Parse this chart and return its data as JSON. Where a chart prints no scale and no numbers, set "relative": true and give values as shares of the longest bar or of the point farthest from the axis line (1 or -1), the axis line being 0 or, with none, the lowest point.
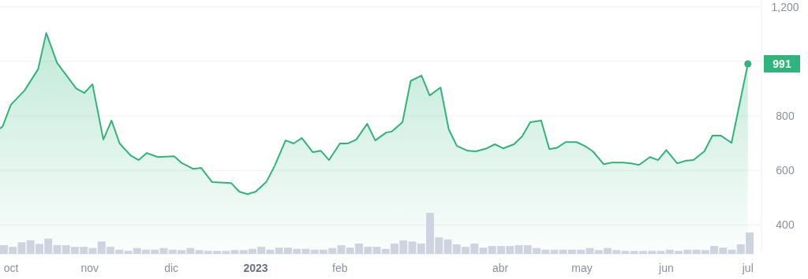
{
  "chart_data": [
    {
      "type": "area",
      "color": "#2fb47c",
      "x": [
        "2022-09-29",
        "2022-09-30",
        "2022-10-03",
        "2022-10-08",
        "2022-10-13",
        "2022-10-16",
        "2022-10-20",
        "2022-10-27",
        "2022-10-30",
        "2022-11-02",
        "2022-11-06",
        "2022-11-09",
        "2022-11-12",
        "2022-11-16",
        "2022-11-19",
        "2022-11-22",
        "2022-11-26",
        "2022-12-02",
        "2022-12-05",
        "2022-12-09",
        "2022-12-12",
        "2022-12-16",
        "2022-12-23",
        "2022-12-26",
        "2022-12-29",
        "2023-01-01",
        "2023-01-05",
        "2023-01-08",
        "2023-01-12",
        "2023-01-15",
        "2023-01-18",
        "2023-01-22",
        "2023-01-25",
        "2023-01-28",
        "2023-02-01",
        "2023-02-04",
        "2023-02-07",
        "2023-02-11",
        "2023-02-14",
        "2023-02-18",
        "2023-02-20",
        "2023-02-24",
        "2023-02-27",
        "2023-03-03",
        "2023-03-06",
        "2023-03-10",
        "2023-03-13",
        "2023-03-16",
        "2023-03-20",
        "2023-03-23",
        "2023-03-27",
        "2023-03-30",
        "2023-04-02",
        "2023-04-06",
        "2023-04-09",
        "2023-04-12",
        "2023-04-16",
        "2023-04-19",
        "2023-04-22",
        "2023-04-25",
        "2023-04-29",
        "2023-05-02",
        "2023-05-05",
        "2023-05-09",
        "2023-05-12",
        "2023-05-16",
        "2023-05-19",
        "2023-05-22",
        "2023-05-26",
        "2023-05-29",
        "2023-06-01",
        "2023-06-05",
        "2023-06-08",
        "2023-06-11",
        "2023-06-15",
        "2023-06-18",
        "2023-06-21",
        "2023-06-25",
        "2023-07-01"
      ],
      "values": [
        754,
        762,
        841,
        893,
        971,
        1104,
        994,
        901,
        884,
        916,
        713,
        783,
        699,
        655,
        638,
        664,
        649,
        652,
        626,
        606,
        609,
        557,
        554,
        522,
        513,
        522,
        559,
        617,
        710,
        699,
        719,
        667,
        672,
        638,
        699,
        699,
        713,
        771,
        710,
        739,
        742,
        777,
        928,
        948,
        875,
        904,
        751,
        690,
        672,
        670,
        681,
        696,
        681,
        696,
        725,
        777,
        783,
        678,
        684,
        704,
        704,
        690,
        670,
        623,
        629,
        629,
        626,
        620,
        649,
        638,
        675,
        626,
        635,
        638,
        670,
        728,
        728,
        701,
        991
      ],
      "xlim": [
        "2022-09-29",
        "2023-07-06"
      ],
      "xticks": [
        {
          "value": "2022-10-01",
          "label": "oct"
        },
        {
          "value": "2022-11-01",
          "label": "nov"
        },
        {
          "value": "2022-12-01",
          "label": "dic"
        },
        {
          "value": "2023-01-01",
          "label": "2023"
        },
        {
          "value": "2023-02-01",
          "label": "feb"
        },
        {
          "value": "2023-04-01",
          "label": "abr"
        },
        {
          "value": "2023-05-01",
          "label": "may"
        },
        {
          "value": "2023-06-01",
          "label": "jun"
        },
        {
          "value": "2023-07-01",
          "label": "jul"
        }
      ],
      "ylim": [
        300,
        1225
      ],
      "yticks": [
        400,
        600,
        800,
        {
          "value": 1000,
          "label": null
        },
        {
          "value": 1200,
          "label": "1,200"
        }
      ],
      "grid": "y",
      "annotations": [
        {
          "text": "991",
          "x": "2023-07-01",
          "y": 991
        }
      ]
    },
    {
      "type": "bar",
      "relative": true,
      "color": "#cdd4e0",
      "categories": [
        null,
        null,
        null,
        null,
        null,
        null,
        null,
        null,
        null,
        null,
        null,
        null,
        null,
        null,
        null,
        null,
        null,
        null,
        null,
        null,
        null,
        null,
        null,
        null,
        null,
        null,
        null,
        null,
        null,
        null,
        null,
        null,
        null,
        null,
        null,
        null,
        null,
        null,
        null,
        null,
        null,
        null,
        null,
        null,
        null,
        null,
        null,
        null,
        null,
        null,
        null,
        null,
        null,
        null,
        null,
        null,
        null,
        null,
        null,
        null,
        null,
        null,
        null,
        null,
        null,
        null,
        null,
        null,
        null,
        null,
        null,
        null,
        null,
        null,
        null,
        null,
        null,
        null,
        null,
        null,
        null,
        null,
        null,
        null,
        null
      ],
      "values": [
        0.21,
        0.17,
        0.28,
        0.33,
        0.24,
        0.37,
        0.21,
        0.21,
        0.17,
        0.17,
        0.14,
        0.3,
        0.17,
        0.1,
        0.07,
        0.14,
        0.1,
        0.1,
        0.14,
        0.1,
        0.09,
        0.14,
        0.09,
        0.07,
        0.07,
        0.07,
        0.09,
        0.09,
        0.12,
        0.17,
        0.1,
        0.15,
        0.15,
        0.12,
        0.12,
        0.1,
        0.1,
        0.14,
        0.21,
        0.15,
        0.25,
        0.17,
        0.17,
        0.12,
        0.25,
        0.33,
        0.3,
        0.25,
        1,
        0.4,
        0.35,
        0.23,
        0.17,
        0.25,
        0.15,
        0.19,
        0.19,
        0.19,
        0.21,
        0.21,
        0.14,
        0.1,
        0.1,
        0.1,
        0.1,
        0.1,
        0.14,
        0.09,
        0.14,
        0.09,
        0.07,
        0.07,
        0.07,
        0.07,
        0.07,
        0.1,
        0.07,
        0.1,
        0.1,
        0.09,
        0.19,
        0.15,
        0.1,
        0.23,
        0.52
      ]
    }
  ]
}
